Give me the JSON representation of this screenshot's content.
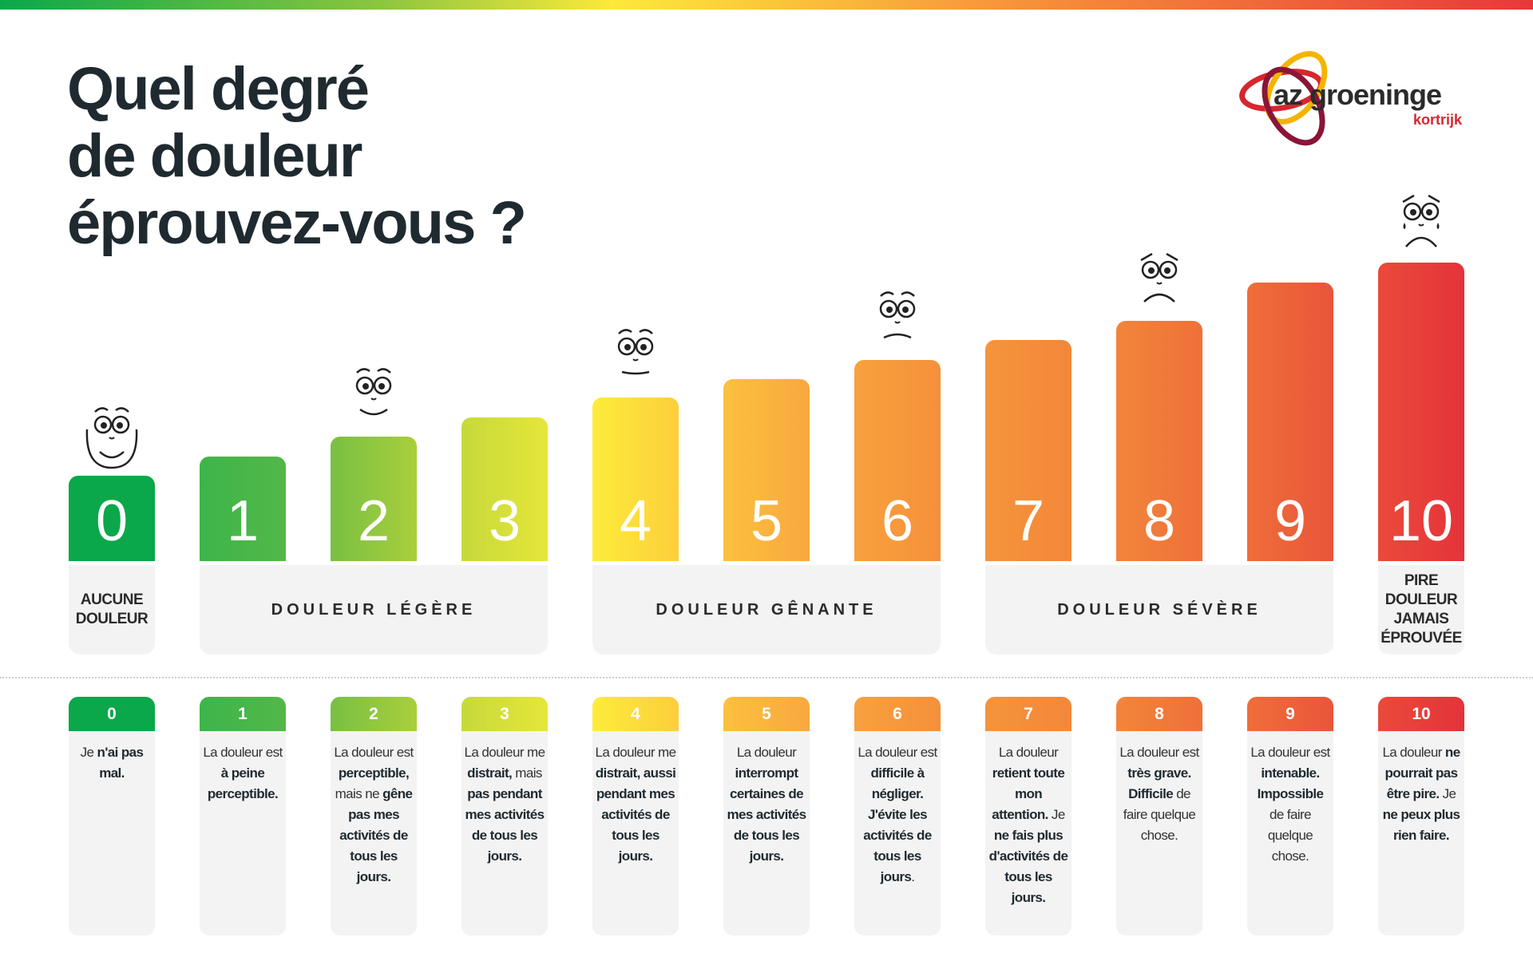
{
  "title_lines": [
    "Quel degré",
    "de douleur",
    "éprouvez-vous ?"
  ],
  "logo": {
    "name": "az groeninge",
    "sub": "kortrijk"
  },
  "levels": [
    {
      "num": "0",
      "color": "#0aa84a",
      "color2": "#0aa84a",
      "height": 0,
      "face": "happy"
    },
    {
      "num": "1",
      "color": "#3db54a",
      "color2": "#52b848",
      "height": 1,
      "face": ""
    },
    {
      "num": "2",
      "color": "#79bf43",
      "color2": "#a9cf3c",
      "height": 2,
      "face": "smile"
    },
    {
      "num": "3",
      "color": "#c6d93b",
      "color2": "#e6e63a",
      "height": 3,
      "face": ""
    },
    {
      "num": "4",
      "color": "#fdec3a",
      "color2": "#fdce3c",
      "height": 4,
      "face": "neutral"
    },
    {
      "num": "5",
      "color": "#fcc03e",
      "color2": "#f9a83f",
      "height": 5,
      "face": ""
    },
    {
      "num": "6",
      "color": "#f8a13d",
      "color2": "#f5903b",
      "height": 6,
      "face": "frown"
    },
    {
      "num": "7",
      "color": "#f5943b",
      "color2": "#f3873a",
      "height": 7,
      "face": ""
    },
    {
      "num": "8",
      "color": "#f2853a",
      "color2": "#ef7039",
      "height": 8,
      "face": "sad"
    },
    {
      "num": "9",
      "color": "#ee6e3a",
      "color2": "#ea553a",
      "height": 9,
      "face": ""
    },
    {
      "num": "10",
      "color": "#ea4a3a",
      "color2": "#e5333a",
      "height": 10,
      "face": "crying"
    }
  ],
  "categories": [
    {
      "label": "AUCUNE DOULEUR",
      "from": 0,
      "to": 0
    },
    {
      "label": "DOULEUR LÉGÈRE",
      "from": 1,
      "to": 3
    },
    {
      "label": "DOULEUR GÊNANTE",
      "from": 4,
      "to": 6
    },
    {
      "label": "DOULEUR SÉVÈRE",
      "from": 7,
      "to": 9
    },
    {
      "label": "PIRE DOULEUR JAMAIS ÉPROUVÉE",
      "from": 10,
      "to": 10
    }
  ],
  "descriptions": [
    [
      {
        "t": "Je ",
        "b": false
      },
      {
        "t": "n'ai pas mal.",
        "b": true
      }
    ],
    [
      {
        "t": "La douleur est ",
        "b": false
      },
      {
        "t": "à peine perceptible.",
        "b": true
      }
    ],
    [
      {
        "t": "La douleur est ",
        "b": false
      },
      {
        "t": "perceptible,",
        "b": true
      },
      {
        "t": " mais ne ",
        "b": false
      },
      {
        "t": "gêne pas mes activités de tous les jours.",
        "b": true
      }
    ],
    [
      {
        "t": "La douleur me ",
        "b": false
      },
      {
        "t": "distrait,",
        "b": true
      },
      {
        "t": " mais ",
        "b": false
      },
      {
        "t": "pas pendant mes activités de tous les jours.",
        "b": true
      }
    ],
    [
      {
        "t": "La douleur me ",
        "b": false
      },
      {
        "t": "distrait, aussi pendant mes activités de tous les jours.",
        "b": true
      }
    ],
    [
      {
        "t": "La douleur ",
        "b": false
      },
      {
        "t": "interrompt certaines de mes activités de tous les jours.",
        "b": true
      }
    ],
    [
      {
        "t": "La douleur est ",
        "b": false
      },
      {
        "t": "difficile à négliger. J'évite les activités de tous les jours",
        "b": true
      },
      {
        "t": ".",
        "b": false
      }
    ],
    [
      {
        "t": "La douleur ",
        "b": false
      },
      {
        "t": "retient toute mon attention.",
        "b": true
      },
      {
        "t": " Je ",
        "b": false
      },
      {
        "t": "ne fais plus d'activités de tous les jours.",
        "b": true
      }
    ],
    [
      {
        "t": "La douleur est ",
        "b": false
      },
      {
        "t": "très grave. Difficile",
        "b": true
      },
      {
        "t": " de faire quelque chose.",
        "b": false
      }
    ],
    [
      {
        "t": "La douleur est ",
        "b": false
      },
      {
        "t": "intenable. Impossible",
        "b": true
      },
      {
        "t": " de faire quelque chose.",
        "b": false
      }
    ],
    [
      {
        "t": "La douleur ",
        "b": false
      },
      {
        "t": "ne pourrait pas être pire.",
        "b": true
      },
      {
        "t": " Je ",
        "b": false
      },
      {
        "t": "ne peux plus rien faire.",
        "b": true
      }
    ]
  ]
}
